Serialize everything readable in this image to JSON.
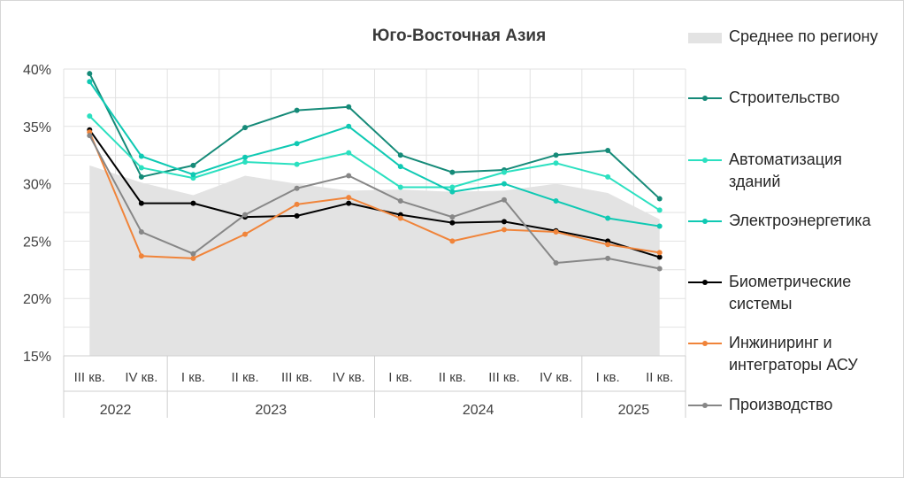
{
  "chart_data": {
    "type": "line",
    "title": "Юго-Восточная Азия",
    "ylim": [
      15,
      40
    ],
    "yticks": [
      "15%",
      "20%",
      "25%",
      "30%",
      "35%",
      "40%"
    ],
    "ytick_values": [
      15,
      20,
      25,
      30,
      35,
      40
    ],
    "categories": [
      "III кв.",
      "IV кв.",
      "I кв.",
      "II кв.",
      "III кв.",
      "IV кв.",
      "I кв.",
      "II кв.",
      "III кв.",
      "IV кв.",
      "I кв.",
      "II кв."
    ],
    "years": [
      {
        "label": "2022",
        "span": 2
      },
      {
        "label": "2023",
        "span": 4
      },
      {
        "label": "2024",
        "span": 4
      },
      {
        "label": "2025",
        "span": 2
      }
    ],
    "grid": true,
    "legend_position": "right",
    "area": {
      "name": "Среднее по региону",
      "color": "#e3e3e3",
      "values": [
        31.6,
        30.1,
        29.0,
        30.7,
        30.0,
        29.4,
        29.5,
        29.3,
        29.4,
        30.0,
        29.2,
        26.9
      ]
    },
    "series": [
      {
        "name": "Строительство",
        "color": "#158a78",
        "values": [
          39.6,
          30.6,
          31.6,
          34.9,
          36.4,
          36.7,
          32.5,
          31.0,
          31.2,
          32.5,
          32.9,
          28.7
        ]
      },
      {
        "name": "Автоматизация зданий",
        "color": "#2be0c0",
        "values": [
          35.9,
          31.4,
          30.5,
          31.9,
          31.7,
          32.7,
          29.7,
          29.7,
          31.0,
          31.8,
          30.6,
          27.7
        ]
      },
      {
        "name": "Электроэнергетика",
        "color": "#0fc9b3",
        "values": [
          38.9,
          32.4,
          30.8,
          32.3,
          33.5,
          35.0,
          31.5,
          29.3,
          30.0,
          28.5,
          27.0,
          26.3
        ]
      },
      {
        "name": "Биометрические системы",
        "color": "#000000",
        "values": [
          34.7,
          28.3,
          28.3,
          27.1,
          27.2,
          28.3,
          27.3,
          26.6,
          26.7,
          25.9,
          25.0,
          23.6
        ]
      },
      {
        "name": "Инжиниринг и интеграторы АСУ",
        "color": "#f0843a",
        "values": [
          34.5,
          23.7,
          23.5,
          25.6,
          28.2,
          28.8,
          27.0,
          25.0,
          26.0,
          25.8,
          24.7,
          24.0
        ]
      },
      {
        "name": "Производство",
        "color": "#878787",
        "values": [
          34.2,
          25.8,
          23.9,
          27.3,
          29.6,
          30.7,
          28.5,
          27.1,
          28.6,
          23.1,
          23.5,
          22.6
        ]
      }
    ],
    "legend": [
      {
        "lines": [
          "Среднее по региону"
        ],
        "kind": "area",
        "ref": "area"
      },
      {
        "lines": [
          "Строительство"
        ],
        "kind": "line",
        "ref": 0
      },
      {
        "lines": [
          "Автоматизация",
          "зданий"
        ],
        "kind": "line",
        "ref": 1
      },
      {
        "lines": [
          "Электроэнергетика"
        ],
        "kind": "line",
        "ref": 2
      },
      {
        "lines": [
          "Биометрические",
          "системы"
        ],
        "kind": "line",
        "ref": 3
      },
      {
        "lines": [
          "Инжиниринг и",
          "интеграторы АСУ"
        ],
        "kind": "line",
        "ref": 4
      },
      {
        "lines": [
          "Производство"
        ],
        "kind": "line",
        "ref": 5
      }
    ]
  }
}
